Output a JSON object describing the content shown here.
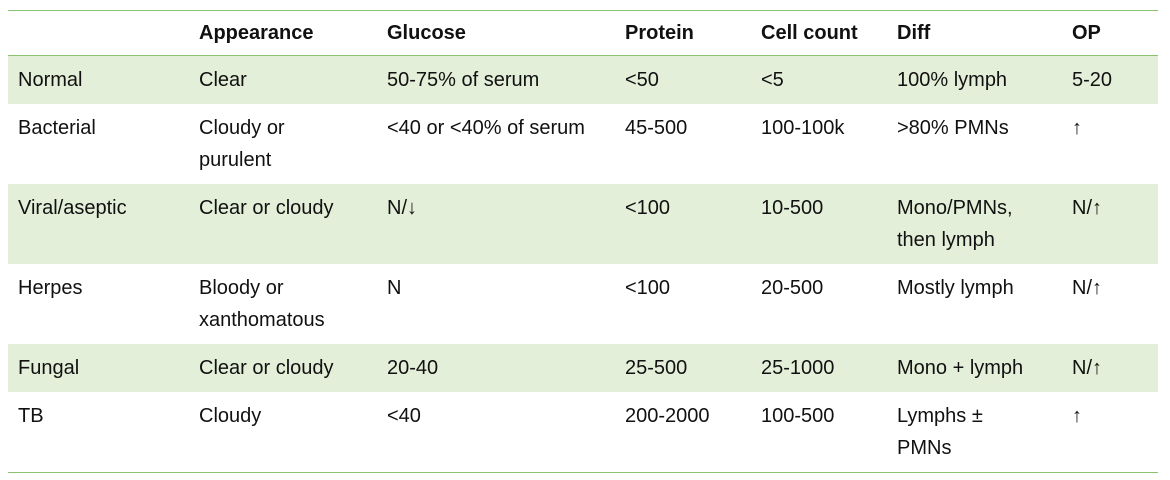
{
  "table": {
    "columns": [
      "",
      "Appearance",
      "Glucose",
      "Protein",
      "Cell count",
      "Diff",
      "OP"
    ],
    "rows": [
      [
        "Normal",
        "Clear",
        "50-75% of serum",
        "<50",
        "<5",
        "100% lymph",
        "5-20"
      ],
      [
        "Bacterial",
        "Cloudy or purulent",
        "<40 or <40% of serum",
        "45-500",
        "100-100k",
        ">80% PMNs",
        "↑"
      ],
      [
        "Viral/aseptic",
        "Clear or cloudy",
        "N/↓",
        "<100",
        "10-500",
        "Mono/PMNs, then lymph",
        "N/↑"
      ],
      [
        "Herpes",
        "Bloody or xanthomatous",
        "N",
        "<100",
        "20-500",
        "Mostly lymph",
        "N/↑"
      ],
      [
        "Fungal",
        "Clear or cloudy",
        "20-40",
        "25-500",
        "25-1000",
        "Mono + lymph",
        "N/↑"
      ],
      [
        "TB",
        "Cloudy",
        "<40",
        "200-2000",
        "100-500",
        "Lymphs ± PMNs",
        "↑"
      ]
    ]
  }
}
